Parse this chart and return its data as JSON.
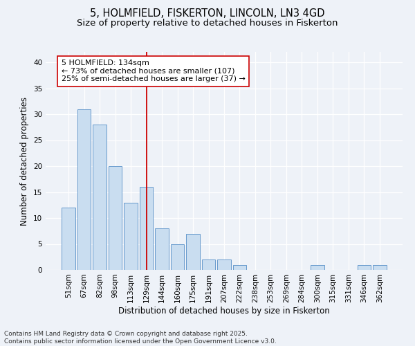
{
  "title": "5, HOLMFIELD, FISKERTON, LINCOLN, LN3 4GD",
  "subtitle": "Size of property relative to detached houses in Fiskerton",
  "xlabel": "Distribution of detached houses by size in Fiskerton",
  "ylabel": "Number of detached properties",
  "categories": [
    "51sqm",
    "67sqm",
    "82sqm",
    "98sqm",
    "113sqm",
    "129sqm",
    "144sqm",
    "160sqm",
    "175sqm",
    "191sqm",
    "207sqm",
    "222sqm",
    "238sqm",
    "253sqm",
    "269sqm",
    "284sqm",
    "300sqm",
    "315sqm",
    "331sqm",
    "346sqm",
    "362sqm"
  ],
  "values": [
    12,
    31,
    28,
    20,
    13,
    16,
    8,
    5,
    7,
    2,
    2,
    1,
    0,
    0,
    0,
    0,
    1,
    0,
    0,
    1,
    1
  ],
  "bar_color": "#c9ddf0",
  "bar_edge_color": "#6699cc",
  "background_color": "#eef2f8",
  "grid_color": "#ffffff",
  "vline_x": 5.0,
  "vline_color": "#cc0000",
  "annotation_text": "5 HOLMFIELD: 134sqm\n← 73% of detached houses are smaller (107)\n25% of semi-detached houses are larger (37) →",
  "annotation_box_color": "#ffffff",
  "annotation_box_edge": "#cc0000",
  "ylim": [
    0,
    42
  ],
  "yticks": [
    0,
    5,
    10,
    15,
    20,
    25,
    30,
    35,
    40
  ],
  "footer": "Contains HM Land Registry data © Crown copyright and database right 2025.\nContains public sector information licensed under the Open Government Licence v3.0.",
  "title_fontsize": 10.5,
  "subtitle_fontsize": 9.5,
  "axis_label_fontsize": 8.5,
  "tick_fontsize": 7.5,
  "annotation_fontsize": 8,
  "footer_fontsize": 6.5
}
